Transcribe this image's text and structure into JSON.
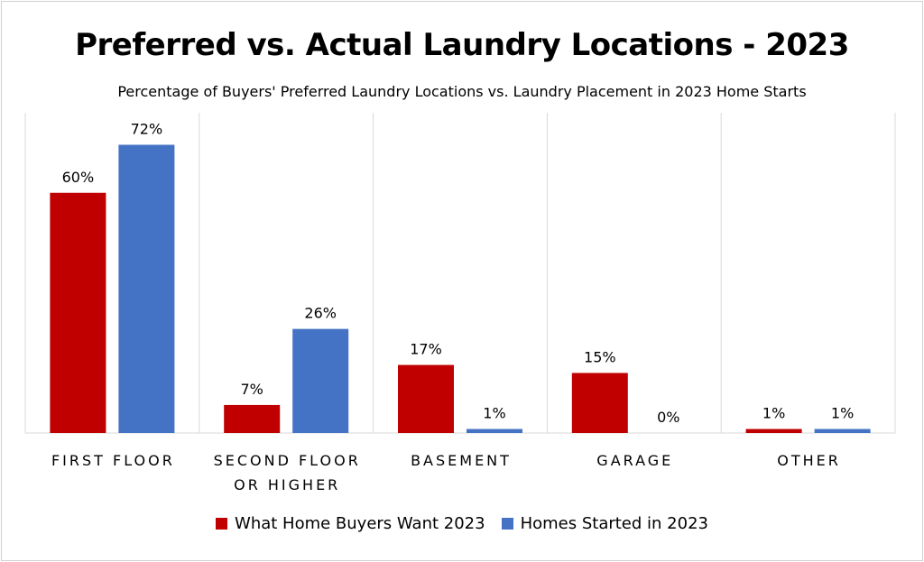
{
  "chart_data": {
    "type": "bar",
    "title": "Preferred vs. Actual Laundry Locations - 2023",
    "subtitle": "Percentage of Buyers' Preferred Laundry Locations vs. Laundry Placement in 2023 Home Starts",
    "categories": [
      [
        "FIRST FLOOR"
      ],
      [
        "SECOND FLOOR",
        "OR HIGHER"
      ],
      [
        "BASEMENT"
      ],
      [
        "GARAGE"
      ],
      [
        "OTHER"
      ]
    ],
    "series": [
      {
        "name": "What Home Buyers Want 2023",
        "color": "#c00000",
        "values": [
          60,
          7,
          17,
          15,
          1
        ],
        "labels": [
          "60%",
          "7%",
          "17%",
          "15%",
          "1%"
        ]
      },
      {
        "name": "Homes Started in 2023",
        "color": "#4472c4",
        "values": [
          72,
          26,
          1,
          0,
          1
        ],
        "labels": [
          "72%",
          "26%",
          "1%",
          "0%",
          "1%"
        ]
      }
    ],
    "ylim": [
      0,
      80
    ],
    "xlabel": "",
    "ylabel": "",
    "grid": false,
    "legend": "bottom"
  }
}
